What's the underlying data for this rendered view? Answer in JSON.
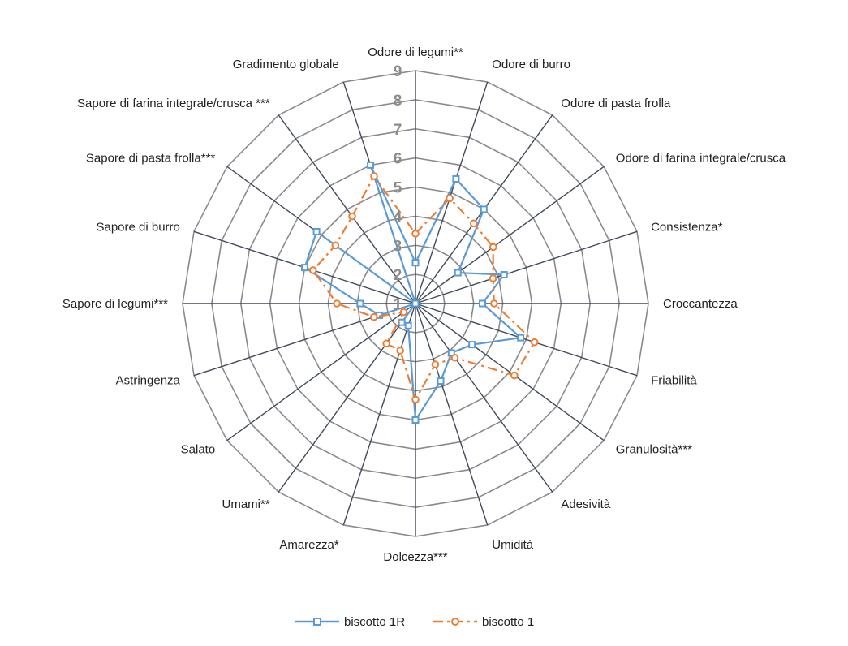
{
  "chart_data": {
    "type": "radar",
    "title": "",
    "categories": [
      "Odore di legumi**",
      "Odore di burro",
      "Odore di pasta frolla",
      "Odore di farina integrale/crusca",
      "Consistenza*",
      "Croccantezza",
      "Friabilità",
      "Granulosità***",
      "Adesività",
      "Umidità",
      "Dolcezza***",
      "Amarezza*",
      "Umami**",
      "Salato",
      "Astringenza",
      "Sapore di legumi***",
      "Sapore di burro",
      "Sapore di pasta frolla***",
      "Sapore di farina integrale/crusca ***",
      "Gradimento globale"
    ],
    "rlim": [
      1,
      9
    ],
    "ticks": [
      "1",
      "2",
      "3",
      "4",
      "5",
      "6",
      "7",
      "8",
      "9"
    ],
    "grid": true,
    "legend_position": "bottom",
    "series": [
      {
        "name": "biscotto 1R",
        "color": "#5b9bd5",
        "line": "solid",
        "marker": "square",
        "values": [
          2.4,
          5.5,
          5.0,
          2.8,
          4.2,
          3.3,
          4.8,
          3.4,
          3.1,
          3.8,
          5.0,
          1.8,
          1.8,
          1.0,
          2.3,
          2.9,
          5.0,
          5.2,
          1.0,
          6.0
        ]
      },
      {
        "name": "biscotto 1",
        "color": "#ed7d31",
        "line": "dashdot",
        "marker": "circle",
        "values": [
          3.4,
          4.8,
          4.4,
          4.3,
          3.8,
          3.7,
          5.3,
          5.2,
          3.3,
          3.2,
          4.3,
          2.7,
          2.7,
          1.5,
          2.5,
          3.7,
          4.7,
          4.4,
          4.7,
          5.6
        ]
      }
    ]
  }
}
